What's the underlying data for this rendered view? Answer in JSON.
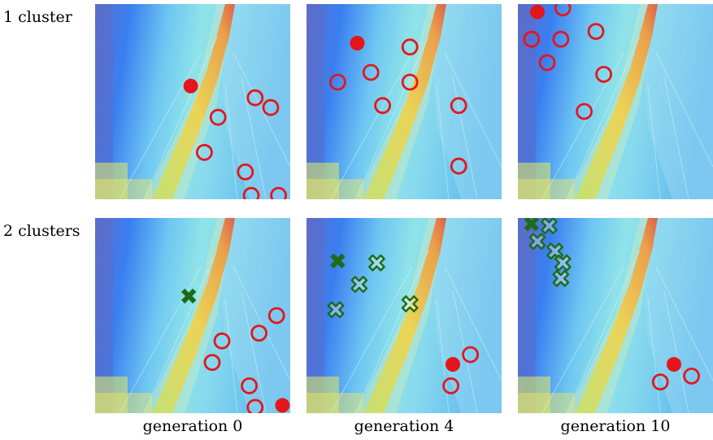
{
  "row_labels": [
    "1 cluster",
    "2 clusters"
  ],
  "col_labels": [
    "generation 0",
    "generation 4",
    "generation 10"
  ],
  "colors": {
    "population_marker": "#e4161b",
    "elite_marker": "#e4161b",
    "cluster2_marker": "#1e6b16",
    "cluster2_elite": "#1e6b16"
  },
  "panels": [
    {
      "row": 0,
      "col": 0,
      "elite": [
        0.49,
        0.58
      ],
      "members": [
        [
          0.63,
          0.42
        ],
        [
          0.56,
          0.24
        ],
        [
          0.82,
          0.52
        ],
        [
          0.9,
          0.47
        ],
        [
          0.77,
          0.14
        ],
        [
          0.8,
          0.02
        ],
        [
          0.94,
          0.02
        ]
      ],
      "cluster2_elite": null,
      "cluster2_members": []
    },
    {
      "row": 0,
      "col": 1,
      "elite": [
        0.26,
        0.8
      ],
      "members": [
        [
          0.16,
          0.6
        ],
        [
          0.33,
          0.65
        ],
        [
          0.53,
          0.78
        ],
        [
          0.53,
          0.6
        ],
        [
          0.39,
          0.48
        ],
        [
          0.78,
          0.48
        ],
        [
          0.78,
          0.17
        ]
      ],
      "cluster2_elite": null,
      "cluster2_members": []
    },
    {
      "row": 0,
      "col": 2,
      "elite": [
        0.1,
        0.96
      ],
      "members": [
        [
          0.23,
          0.98
        ],
        [
          0.4,
          0.86
        ],
        [
          0.07,
          0.82
        ],
        [
          0.22,
          0.82
        ],
        [
          0.15,
          0.7
        ],
        [
          0.44,
          0.64
        ],
        [
          0.34,
          0.45
        ]
      ],
      "cluster2_elite": null,
      "cluster2_members": []
    },
    {
      "row": 1,
      "col": 0,
      "elite": [
        0.96,
        0.04
      ],
      "members": [
        [
          0.93,
          0.5
        ],
        [
          0.84,
          0.41
        ],
        [
          0.65,
          0.37
        ],
        [
          0.6,
          0.26
        ],
        [
          0.79,
          0.14
        ],
        [
          0.82,
          0.03
        ]
      ],
      "cluster2_elite": [
        0.48,
        0.6
      ],
      "cluster2_members": []
    },
    {
      "row": 1,
      "col": 1,
      "elite": [
        0.75,
        0.25
      ],
      "members": [
        [
          0.84,
          0.3
        ],
        [
          0.74,
          0.14
        ]
      ],
      "cluster2_elite": [
        0.16,
        0.78
      ],
      "cluster2_members": [
        [
          0.36,
          0.77
        ],
        [
          0.27,
          0.66
        ],
        [
          0.15,
          0.53
        ],
        [
          0.53,
          0.56
        ]
      ]
    },
    {
      "row": 1,
      "col": 2,
      "elite": [
        0.8,
        0.25
      ],
      "members": [
        [
          0.73,
          0.16
        ],
        [
          0.89,
          0.19
        ]
      ],
      "cluster2_elite": [
        0.07,
        0.97
      ],
      "cluster2_members": [
        [
          0.16,
          0.96
        ],
        [
          0.1,
          0.88
        ],
        [
          0.19,
          0.83
        ],
        [
          0.23,
          0.77
        ],
        [
          0.22,
          0.69
        ]
      ]
    }
  ]
}
